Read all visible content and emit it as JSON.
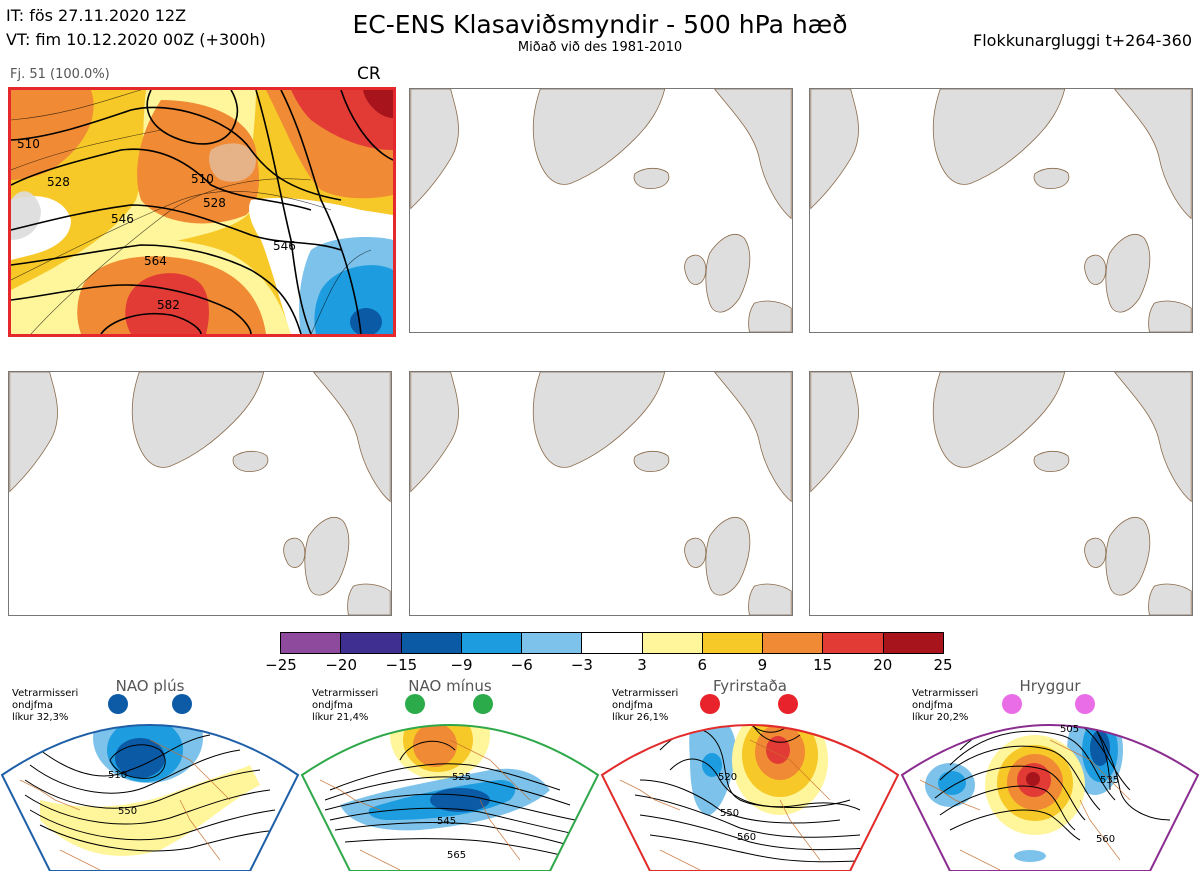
{
  "header": {
    "init_time": "IT: fös 27.11.2020 12Z",
    "valid_time": "VT: fim 10.12.2020 00Z  (+300h)",
    "title": "EC-ENS Klasaviðsmyndir - 500 hPa hæð",
    "subtitle": "Miðað við des 1981-2010",
    "window": "Flokkunargluggi t+264-360"
  },
  "panel1": {
    "member_label": "Fj. 51 (100.0%)",
    "class_label": "CR",
    "contour_labels": [
      "510",
      "528",
      "546",
      "564",
      "582",
      "510",
      "528",
      "546"
    ]
  },
  "colorbar": {
    "ticks": [
      "−25",
      "−20",
      "−15",
      "−9",
      "−6",
      "−3",
      "3",
      "6",
      "9",
      "15",
      "20",
      "25"
    ],
    "colors": [
      "#8e4a9d",
      "#3e2f91",
      "#0b5aa5",
      "#1d9de0",
      "#7cc2ea",
      "#ffffff",
      "#fff59a",
      "#f7c928",
      "#f08a34",
      "#e23a35",
      "#a8141c"
    ]
  },
  "regimes": [
    {
      "title": "NAO plús",
      "meta": [
        "Vetrarmisseri",
        "ondjfma",
        "líkur 32,3%"
      ],
      "color": "#1f5fa8",
      "dot": "#0d5aa7",
      "labels": [
        "510",
        "550"
      ]
    },
    {
      "title": "NAO mínus",
      "meta": [
        "Vetrarmisseri",
        "ondjfma",
        "líkur 21,4%"
      ],
      "color": "#2fa84a",
      "dot": "#2bab4a",
      "labels": [
        "525",
        "545",
        "565"
      ]
    },
    {
      "title": "Fyrirstaða",
      "meta": [
        "Vetrarmisseri",
        "ondjfma",
        "líkur 26,1%"
      ],
      "color": "#e22b2b",
      "dot": "#e8232b",
      "labels": [
        "520",
        "550",
        "560"
      ]
    },
    {
      "title": "Hryggur",
      "meta": [
        "Vetrarmisseri",
        "ondjfma",
        "líkur 20,2%"
      ],
      "color": "#8a2d8f",
      "dot": "#ea6de8",
      "labels": [
        "505",
        "535",
        "560"
      ]
    }
  ]
}
